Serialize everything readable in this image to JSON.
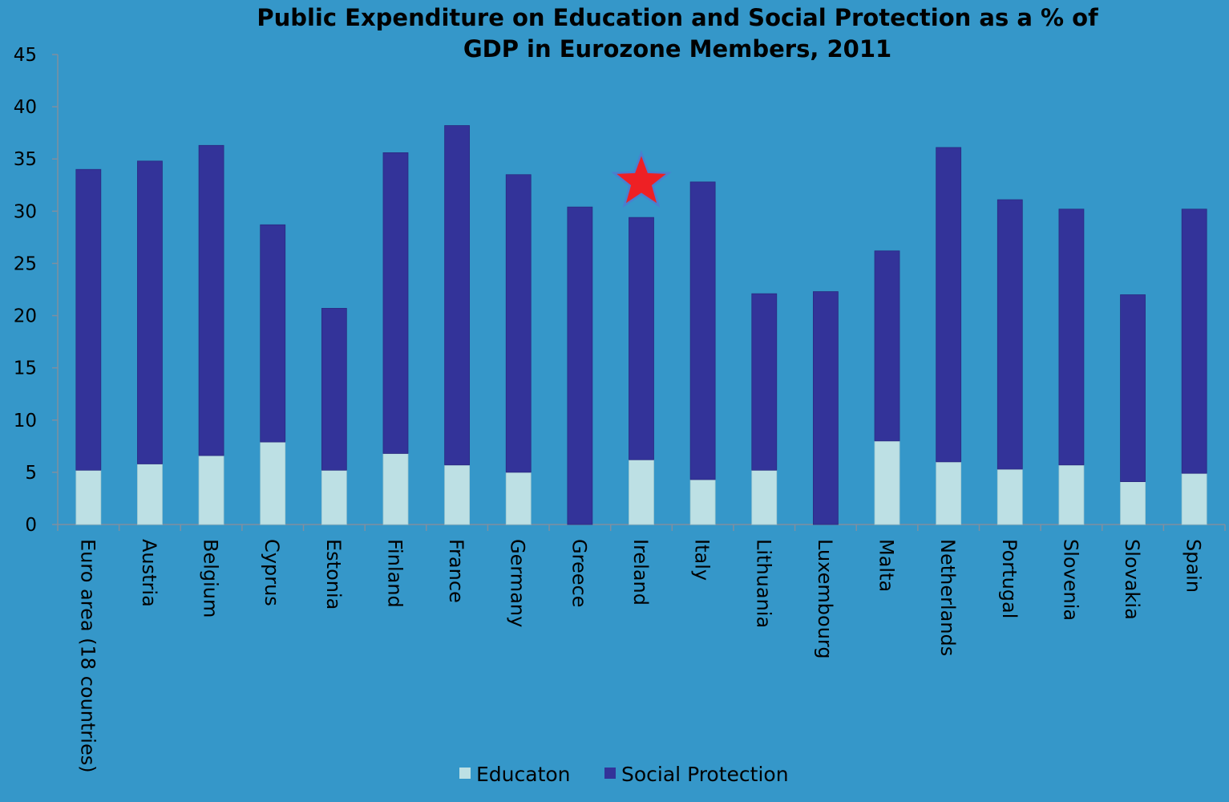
{
  "chart_data": {
    "type": "bar",
    "stacked": true,
    "title_lines": [
      "Public Expenditure on Education and Social Protection as a % of",
      "GDP in Eurozone Members, 2011"
    ],
    "xlabel": "",
    "ylabel": "",
    "ylim": [
      0,
      45
    ],
    "yticks": [
      0,
      5,
      10,
      15,
      20,
      25,
      30,
      35,
      40,
      45
    ],
    "grid": false,
    "legend_position": "bottom",
    "categories": [
      "Euro area (18 countries)",
      "Austria",
      "Belgium",
      "Cyprus",
      "Estonia",
      "Finland",
      "France",
      "Germany",
      "Greece",
      "Ireland",
      "Italy",
      "Lithuania",
      "Luxembourg",
      "Malta",
      "Netherlands",
      "Portugal",
      "Slovenia",
      "Slovakia",
      "Spain"
    ],
    "series": [
      {
        "name": "Educaton",
        "color": "#bde0e4",
        "values": [
          5.2,
          5.8,
          6.6,
          7.9,
          5.2,
          6.8,
          5.7,
          5.0,
          0,
          6.2,
          4.3,
          5.2,
          0,
          8.0,
          6.0,
          5.3,
          5.7,
          4.1,
          4.9
        ]
      },
      {
        "name": "Social Protection",
        "color": "#333399",
        "values": [
          28.8,
          29.0,
          29.7,
          20.8,
          15.5,
          28.8,
          32.5,
          28.5,
          30.4,
          23.2,
          28.5,
          16.9,
          22.3,
          18.2,
          30.1,
          25.8,
          24.5,
          17.9,
          25.3
        ]
      }
    ],
    "annotations": [
      {
        "type": "star-marker",
        "category": "Ireland",
        "y": 32.8,
        "color": "#ee2024"
      }
    ]
  }
}
